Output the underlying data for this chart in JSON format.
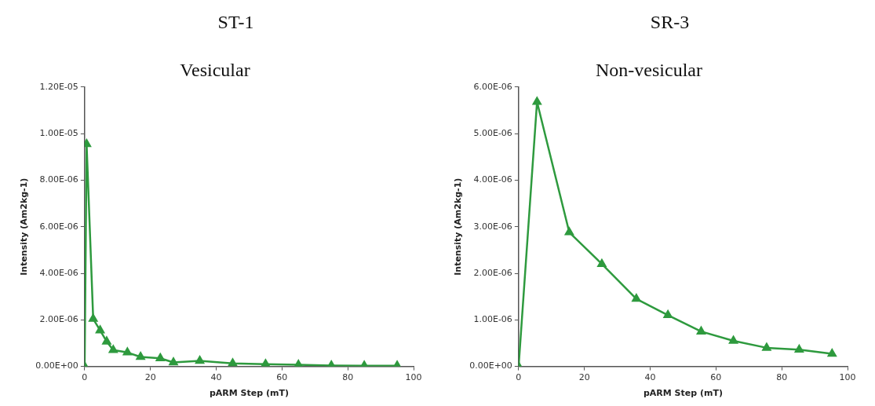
{
  "chart_data": [
    {
      "type": "line",
      "title": "ST-1",
      "subtitle": "Vesicular",
      "xlabel": "pARM Step (mT)",
      "ylabel": "Intensity (Am2kg-1)",
      "x": [
        0,
        0.6,
        2.6,
        4.7,
        6.7,
        8.7,
        13,
        17,
        23,
        27,
        35,
        45,
        55,
        65,
        75,
        85,
        95
      ],
      "series": [
        {
          "color": "#2e9a3e",
          "values": [
            0,
            9.55e-06,
            2.04e-06,
            1.55e-06,
            1.07e-06,
            7e-07,
            6e-07,
            4.1e-07,
            3.5e-07,
            1.7e-07,
            2.4e-07,
            1.3e-07,
            1e-07,
            7e-08,
            4e-08,
            3e-08,
            3e-08
          ]
        }
      ],
      "xlim": [
        0,
        100
      ],
      "xticks": [
        0,
        20,
        40,
        60,
        80,
        100
      ],
      "ylim": [
        0,
        1.2e-05
      ],
      "yticks": [
        {
          "value": 0,
          "label": "0.00E+00"
        },
        {
          "value": 2e-06,
          "label": "2.00E-06"
        },
        {
          "value": 4e-06,
          "label": "4.00E-06"
        },
        {
          "value": 6e-06,
          "label": "6.00E-06"
        },
        {
          "value": 8e-06,
          "label": "8.00E-06"
        },
        {
          "value": 1e-05,
          "label": "1.00E-05"
        },
        {
          "value": 1.2e-05,
          "label": "1.20E-05"
        }
      ],
      "marker": "triangle",
      "grid": false,
      "legend": false
    },
    {
      "type": "line",
      "title": "SR-3",
      "subtitle": "Non-vesicular",
      "xlabel": "pARM Step (mT)",
      "ylabel": "Intensity (Am2kg-1)",
      "x": [
        0,
        5.6,
        15.4,
        25.3,
        35.8,
        45.4,
        55.5,
        65.3,
        75.4,
        85.3,
        95.3
      ],
      "series": [
        {
          "color": "#2e9a3e",
          "values": [
            0,
            5.68e-06,
            2.88e-06,
            2.2e-06,
            1.45e-06,
            1.1e-06,
            7.5e-07,
            5.5e-07,
            4e-07,
            3.6e-07,
            2.7e-07
          ]
        }
      ],
      "xlim": [
        0,
        100
      ],
      "xticks": [
        0,
        20,
        40,
        60,
        80,
        100
      ],
      "ylim": [
        0,
        6e-06
      ],
      "yticks": [
        {
          "value": 0,
          "label": "0.00E+00"
        },
        {
          "value": 1e-06,
          "label": "1.00E-06"
        },
        {
          "value": 2e-06,
          "label": "2.00E-06"
        },
        {
          "value": 3e-06,
          "label": "3.00E-06"
        },
        {
          "value": 4e-06,
          "label": "4.00E-06"
        },
        {
          "value": 5e-06,
          "label": "5.00E-06"
        },
        {
          "value": 6e-06,
          "label": "6.00E-06"
        }
      ],
      "marker": "triangle",
      "grid": false,
      "legend": false
    }
  ]
}
